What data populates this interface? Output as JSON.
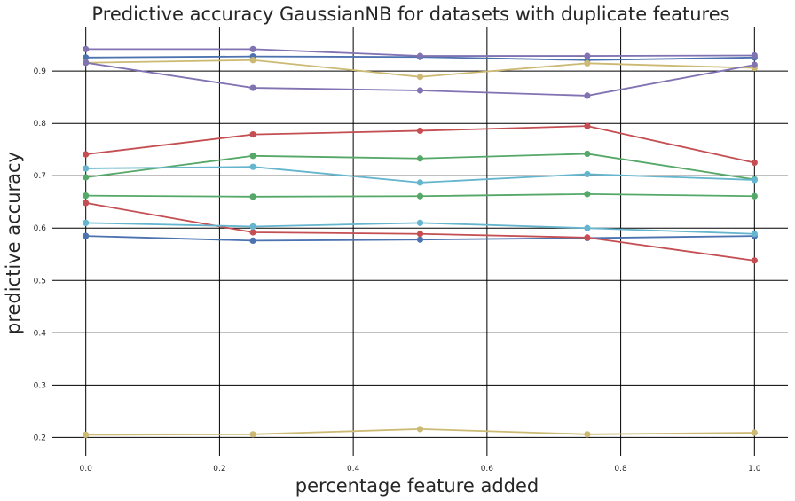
{
  "chart_data": {
    "type": "line",
    "title": "Predictive accuracy GaussianNB for datasets with duplicate features",
    "xlabel": "percentage feature added",
    "ylabel": "predictive accuracy",
    "xlim": [
      -0.05,
      1.05
    ],
    "ylim": [
      0.165,
      0.985
    ],
    "x": [
      0.0,
      0.25,
      0.5,
      0.75,
      1.0
    ],
    "x_ticks": [
      0.0,
      0.2,
      0.4,
      0.6,
      0.8,
      1.0
    ],
    "x_tick_labels": [
      "0.0",
      "0.2",
      "0.4",
      "0.6",
      "0.8",
      "1.0"
    ],
    "y_ticks": [
      0.2,
      0.3,
      0.4,
      0.5,
      0.6,
      0.7,
      0.8,
      0.9
    ],
    "y_tick_labels": [
      "0.2",
      "0.3",
      "0.4",
      "0.5",
      "0.6",
      "0.7",
      "0.8",
      "0.9"
    ],
    "grid": true,
    "legend": false,
    "series": [
      {
        "color": "#4c72b0",
        "values": [
          0.926,
          0.928,
          0.927,
          0.921,
          0.926
        ]
      },
      {
        "color": "#55a868",
        "values": [
          0.697,
          0.738,
          0.733,
          0.742,
          0.693
        ]
      },
      {
        "color": "#c44e52",
        "values": [
          0.741,
          0.779,
          0.786,
          0.795,
          0.725
        ]
      },
      {
        "color": "#8172b2",
        "values": [
          0.942,
          0.942,
          0.929,
          0.929,
          0.93
        ]
      },
      {
        "color": "#ccb974",
        "values": [
          0.916,
          0.921,
          0.889,
          0.915,
          0.906
        ]
      },
      {
        "color": "#64b5cd",
        "values": [
          0.714,
          0.717,
          0.687,
          0.703,
          0.692
        ]
      },
      {
        "color": "#4c72b0",
        "values": [
          0.585,
          0.576,
          0.578,
          0.581,
          0.585
        ]
      },
      {
        "color": "#55a868",
        "values": [
          0.662,
          0.66,
          0.661,
          0.665,
          0.661
        ]
      },
      {
        "color": "#c44e52",
        "values": [
          0.648,
          0.592,
          0.589,
          0.582,
          0.538
        ]
      },
      {
        "color": "#8172b2",
        "values": [
          0.916,
          0.868,
          0.863,
          0.853,
          0.912
        ]
      },
      {
        "color": "#ccb974",
        "values": [
          0.205,
          0.206,
          0.216,
          0.206,
          0.209
        ]
      },
      {
        "color": "#64b5cd",
        "values": [
          0.61,
          0.603,
          0.61,
          0.6,
          0.589
        ]
      }
    ]
  }
}
